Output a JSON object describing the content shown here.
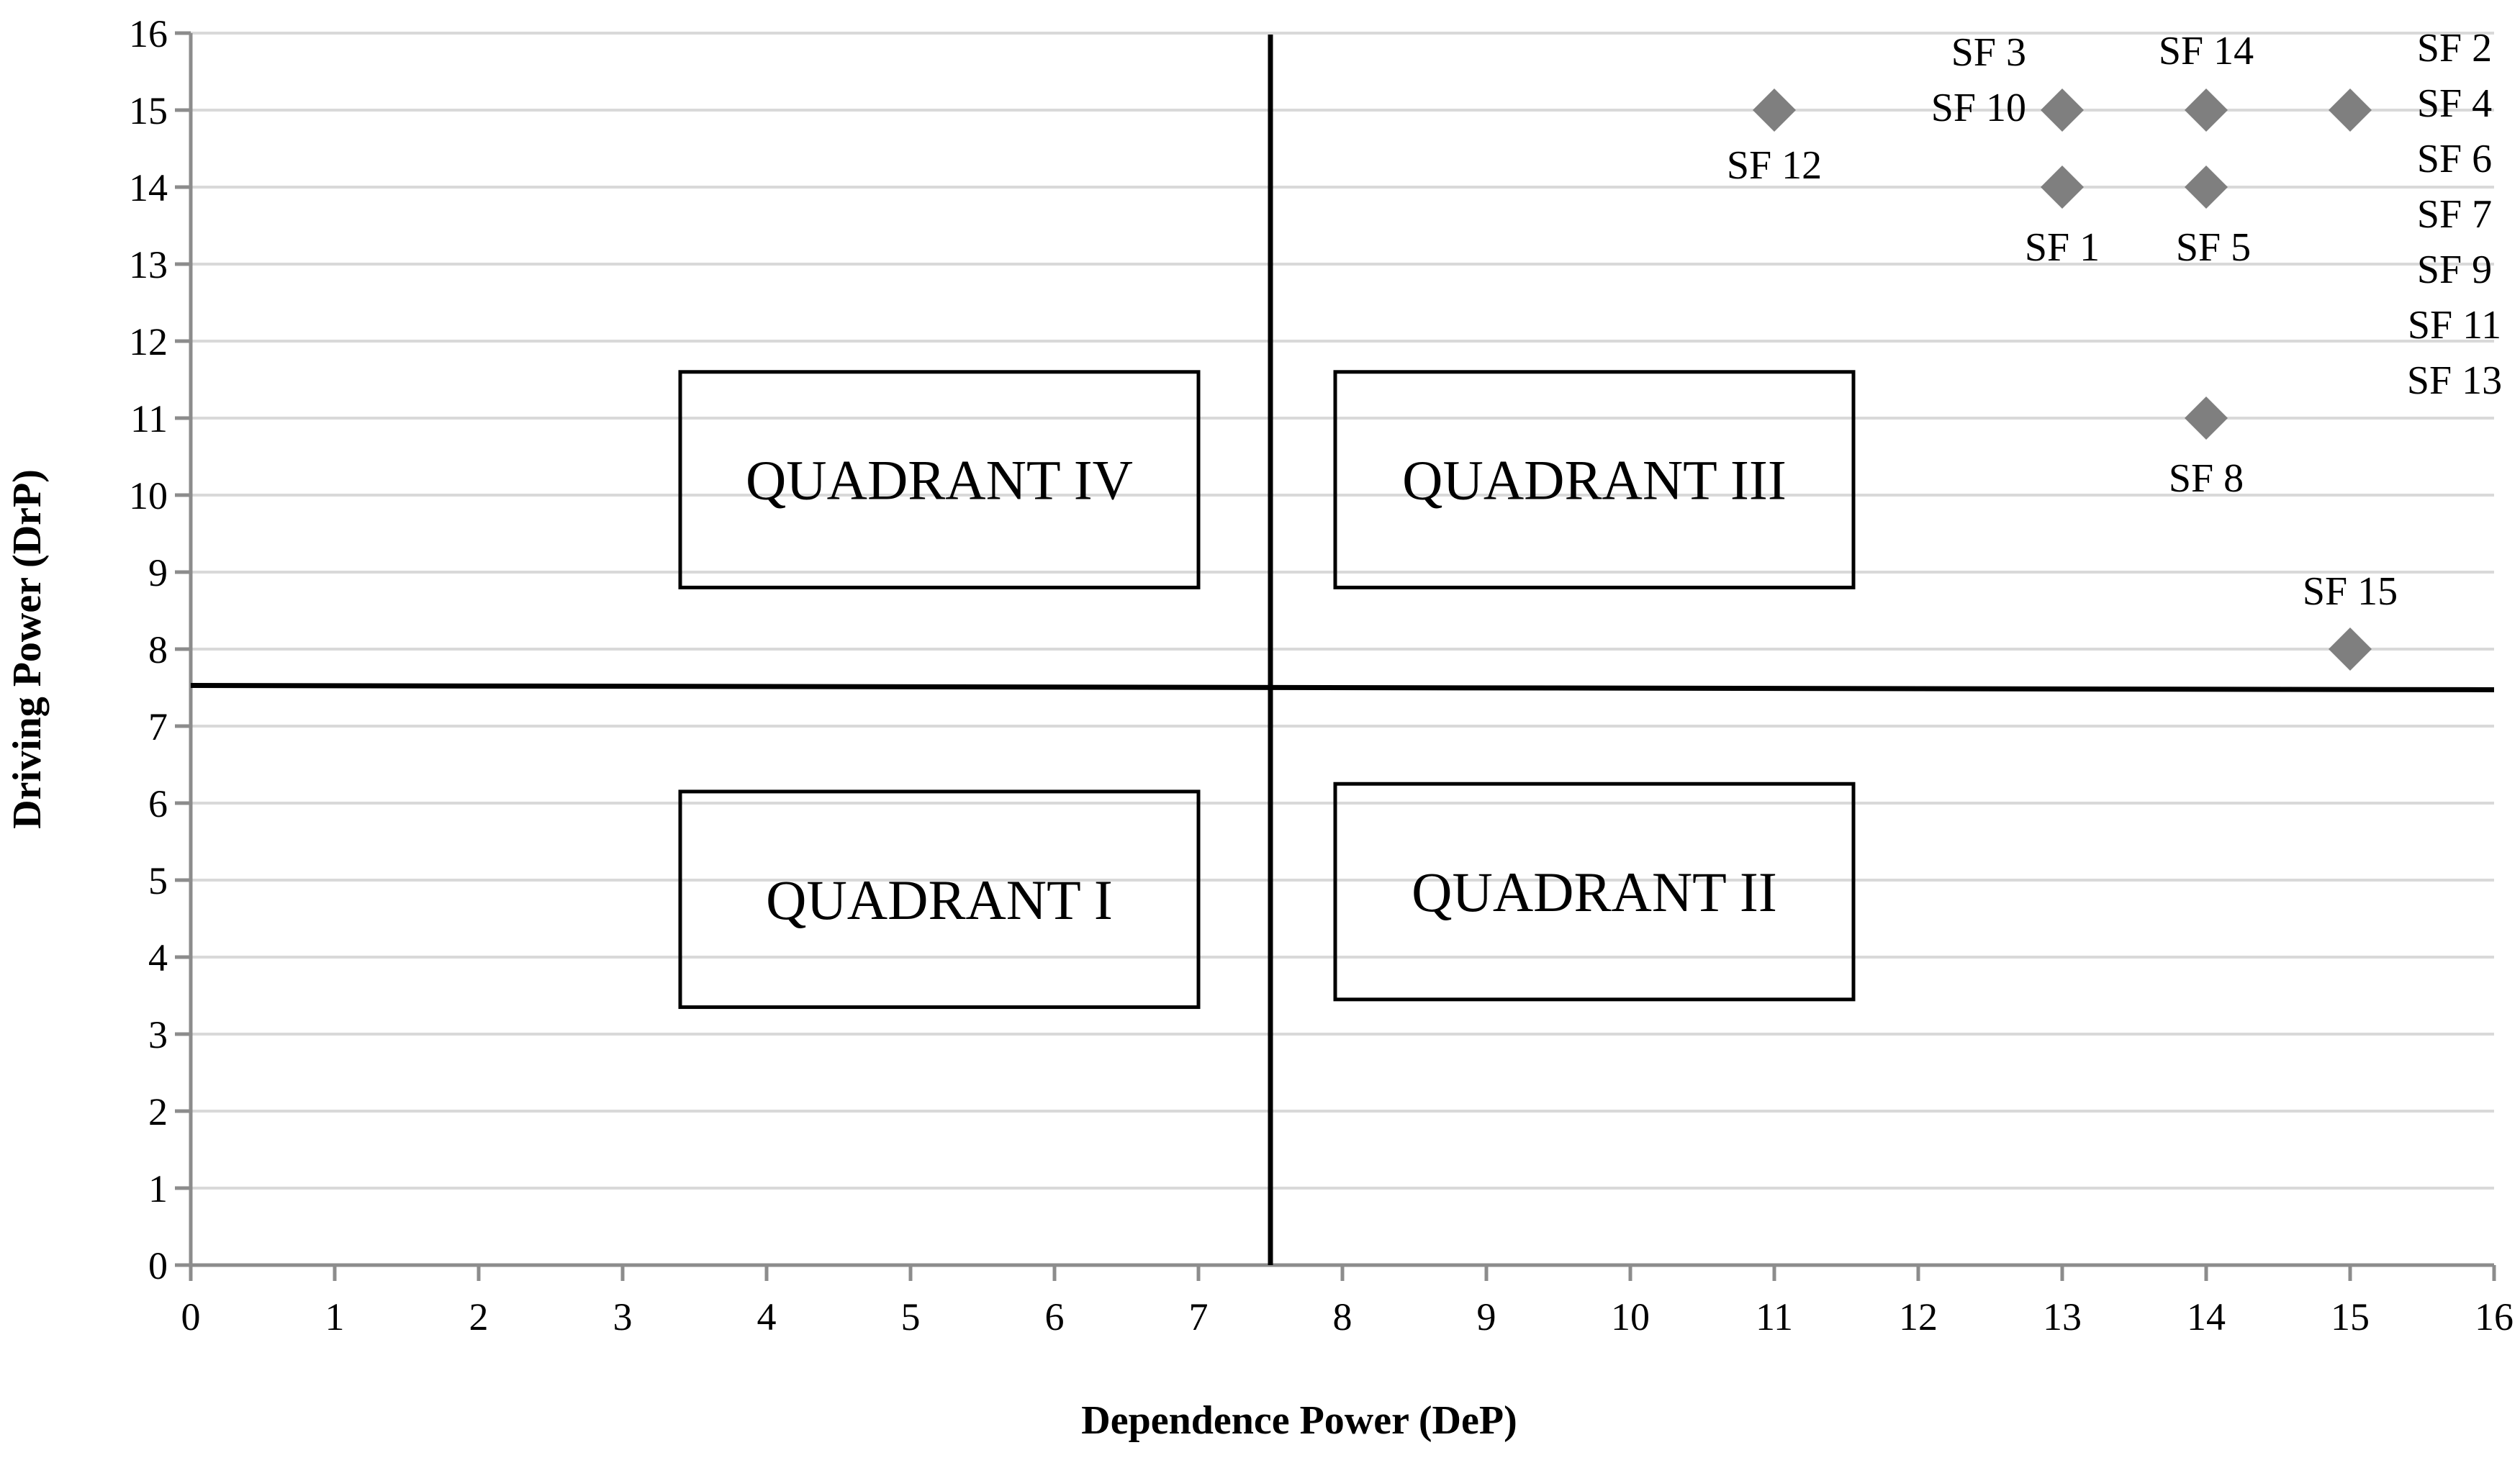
{
  "chart_data": {
    "type": "scatter",
    "title": "",
    "xlabel": "Dependence Power (DeP)",
    "ylabel": "Driving Power (DrP)",
    "xlim": [
      0,
      16
    ],
    "ylim": [
      0,
      16
    ],
    "x_ticks": [
      0,
      1,
      2,
      3,
      4,
      5,
      6,
      7,
      8,
      9,
      10,
      11,
      12,
      13,
      14,
      15,
      16
    ],
    "y_ticks": [
      0,
      1,
      2,
      3,
      4,
      5,
      6,
      7,
      8,
      9,
      10,
      11,
      12,
      13,
      14,
      15,
      16
    ],
    "grid": "horizontal",
    "dividers": {
      "x": 7.5,
      "y": 7.5
    },
    "points": [
      {
        "x": 11,
        "y": 15,
        "label": "SF 12"
      },
      {
        "x": 13,
        "y": 15,
        "label": "SF 3\nSF 10"
      },
      {
        "x": 13,
        "y": 14,
        "label": "SF 1"
      },
      {
        "x": 14,
        "y": 15,
        "label": "SF 14"
      },
      {
        "x": 14,
        "y": 14,
        "label": "SF 5"
      },
      {
        "x": 14,
        "y": 11,
        "label": "SF 8"
      },
      {
        "x": 15,
        "y": 15,
        "label": "SF 2\nSF 4\nSF 6\nSF 7\nSF 9\nSF 11\nSF 13"
      },
      {
        "x": 15,
        "y": 8,
        "label": "SF 15"
      }
    ],
    "quadrants": [
      {
        "label": "QUADRANT IV",
        "x0": 3.4,
        "x1": 7.0,
        "y0": 8.8,
        "y1": 11.6
      },
      {
        "label": "QUADRANT III",
        "x0": 7.95,
        "x1": 11.55,
        "y0": 8.8,
        "y1": 11.6
      },
      {
        "label": "QUADRANT I",
        "x0": 3.4,
        "x1": 7.0,
        "y0": 3.35,
        "y1": 6.15
      },
      {
        "label": "QUADRANT II",
        "x0": 7.95,
        "x1": 11.55,
        "y0": 3.45,
        "y1": 6.25
      }
    ]
  }
}
